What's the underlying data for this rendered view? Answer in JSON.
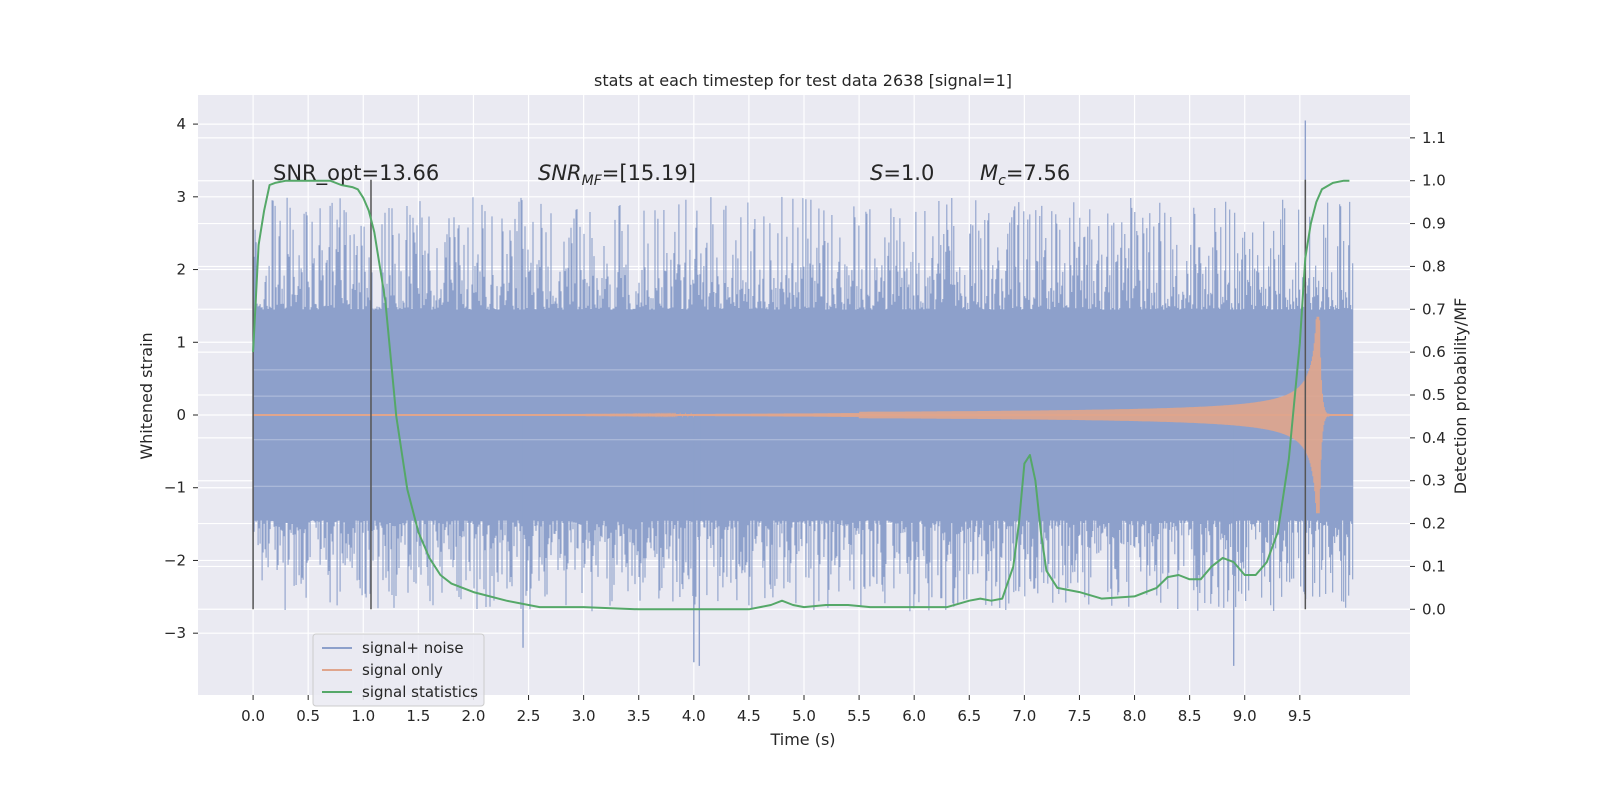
{
  "chart_data": {
    "type": "line",
    "title": "stats at each timestep for test data 2638 [signal=1]",
    "xlabel": "Time (s)",
    "ylabel_left": "Whitened strain",
    "ylabel_right": "Detection probability/MF",
    "xlim": [
      -0.5,
      10.5
    ],
    "ylim_left": [
      -3.85,
      4.4
    ],
    "ylim_right": [
      -0.2,
      1.2
    ],
    "x_ticks": [
      "0.0",
      "0.5",
      "1.0",
      "1.5",
      "2.0",
      "2.5",
      "3.0",
      "3.5",
      "4.0",
      "4.5",
      "5.0",
      "5.5",
      "6.0",
      "6.5",
      "7.0",
      "7.5",
      "8.0",
      "8.5",
      "9.0",
      "9.5"
    ],
    "x_tick_values": [
      0.0,
      0.5,
      1.0,
      1.5,
      2.0,
      2.5,
      3.0,
      3.5,
      4.0,
      4.5,
      5.0,
      5.5,
      6.0,
      6.5,
      7.0,
      7.5,
      8.0,
      8.5,
      9.0,
      9.5
    ],
    "y_left_ticks": [
      "4",
      "3",
      "2",
      "1",
      "0",
      "−1",
      "−2",
      "−3"
    ],
    "y_left_tick_values": [
      4,
      3,
      2,
      1,
      0,
      -1,
      -2,
      -3
    ],
    "y_right_ticks": [
      "1.1",
      "1.0",
      "0.9",
      "0.8",
      "0.7",
      "0.6",
      "0.5",
      "0.4",
      "0.3",
      "0.2",
      "0.1",
      "0.0"
    ],
    "y_right_tick_values": [
      1.1,
      1.0,
      0.9,
      0.8,
      0.7,
      0.6,
      0.5,
      0.4,
      0.3,
      0.2,
      0.1,
      0.0
    ],
    "grid": true,
    "legend_position": "lower-left",
    "annotations": {
      "snr_opt": "SNR_opt=13.66",
      "snr_mf_pre": "SNR",
      "snr_mf_sub": "MF",
      "snr_mf_post": "=[15.19]",
      "s_var": "S",
      "s_val": "=1.0",
      "mc_var": "M",
      "mc_sub": "c",
      "mc_val": "=7.56"
    },
    "series": [
      {
        "name": "signal+ noise",
        "color": "#8da0cb",
        "axis": "left",
        "t_range": [
          0.0,
          9.98
        ],
        "envelope": {
          "core_amplitude": 1.45,
          "peak_max": 4.05,
          "peak_min": -3.45
        }
      },
      {
        "name": "signal only",
        "color": "#e0a58c",
        "axis": "left",
        "t_range": [
          0.0,
          9.98
        ],
        "chirp": {
          "start_growth": 5.5,
          "merger_time": 9.68,
          "peak_amplitude": 1.35
        }
      },
      {
        "name": "signal statistics",
        "color": "#55a868",
        "axis": "right",
        "x": [
          0.0,
          0.05,
          0.1,
          0.15,
          0.2,
          0.3,
          0.5,
          0.7,
          0.8,
          0.9,
          0.95,
          1.0,
          1.05,
          1.1,
          1.2,
          1.3,
          1.4,
          1.5,
          1.6,
          1.7,
          1.8,
          2.0,
          2.3,
          2.6,
          3.0,
          3.5,
          4.0,
          4.5,
          4.7,
          4.8,
          4.9,
          5.0,
          5.2,
          5.4,
          5.6,
          6.0,
          6.3,
          6.5,
          6.6,
          6.7,
          6.8,
          6.9,
          6.95,
          7.0,
          7.05,
          7.1,
          7.15,
          7.2,
          7.3,
          7.5,
          7.7,
          8.0,
          8.2,
          8.3,
          8.4,
          8.5,
          8.6,
          8.7,
          8.8,
          8.9,
          9.0,
          9.1,
          9.2,
          9.3,
          9.4,
          9.5,
          9.55,
          9.6,
          9.65,
          9.7,
          9.8,
          9.9,
          9.95
        ],
        "values": [
          0.6,
          0.85,
          0.93,
          0.99,
          0.995,
          1.0,
          1.0,
          1.0,
          0.99,
          0.985,
          0.98,
          0.96,
          0.93,
          0.88,
          0.72,
          0.45,
          0.28,
          0.18,
          0.12,
          0.08,
          0.06,
          0.04,
          0.02,
          0.005,
          0.005,
          0.0,
          0.0,
          0.0,
          0.01,
          0.02,
          0.01,
          0.005,
          0.01,
          0.01,
          0.005,
          0.005,
          0.005,
          0.02,
          0.025,
          0.02,
          0.025,
          0.1,
          0.2,
          0.34,
          0.36,
          0.3,
          0.18,
          0.09,
          0.05,
          0.04,
          0.025,
          0.03,
          0.05,
          0.075,
          0.08,
          0.07,
          0.07,
          0.1,
          0.12,
          0.11,
          0.08,
          0.08,
          0.11,
          0.18,
          0.35,
          0.62,
          0.82,
          0.9,
          0.95,
          0.98,
          0.995,
          1.0,
          1.0
        ]
      }
    ],
    "vertical_lines": [
      0.0,
      1.07,
      9.55
    ]
  }
}
